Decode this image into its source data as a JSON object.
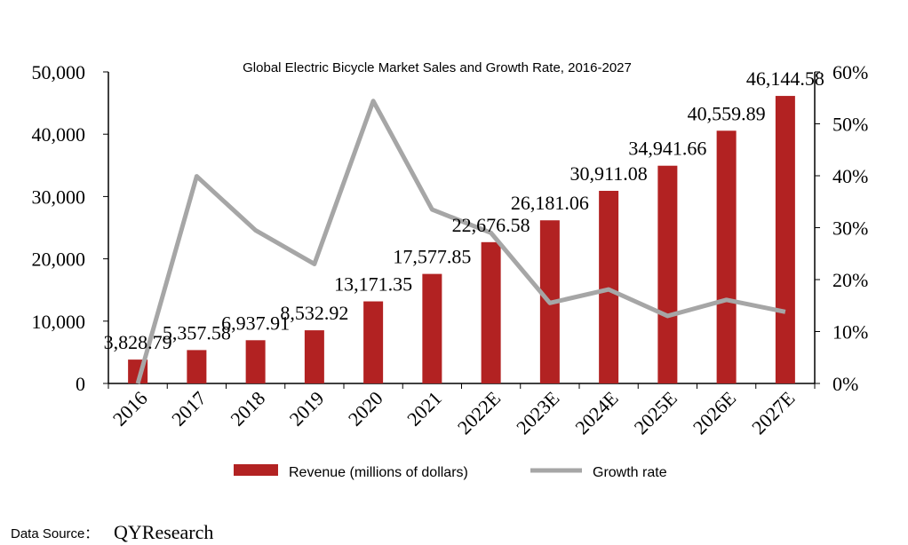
{
  "chart_data": {
    "type": "bar+line",
    "title": "Global Electric Bicycle Market Sales and Growth Rate, 2016-2027",
    "categories": [
      "2016",
      "2017",
      "2018",
      "2019",
      "2020",
      "2021",
      "2022E",
      "2023E",
      "2024E",
      "2025E",
      "2026E",
      "2027E"
    ],
    "series": [
      {
        "name": "Revenue (millions of dollars)",
        "type": "bar",
        "axis": "left",
        "color": "#b22222",
        "values": [
          3828.79,
          5357.58,
          6937.91,
          8532.92,
          13171.35,
          17577.85,
          22676.58,
          26181.06,
          30911.08,
          34941.66,
          40559.89,
          46144.58
        ],
        "labels": [
          "3,828.79",
          "5,357.58",
          "6,937.91",
          "8,532.92",
          "13,171.35",
          "17,577.85",
          "22,676.58",
          "26,181.06",
          "30,911.08",
          "34,941.66",
          "40,559.89",
          "46,144.58"
        ]
      },
      {
        "name": "Growth rate",
        "type": "line",
        "axis": "right",
        "color": "#a6a6a6",
        "values": [
          0,
          39.9,
          29.5,
          23.0,
          54.4,
          33.5,
          29.0,
          15.5,
          18.1,
          13.0,
          16.1,
          13.8
        ]
      }
    ],
    "left_axis": {
      "ylim": [
        0,
        50000
      ],
      "ticks": [
        "0",
        "10,000",
        "20,000",
        "30,000",
        "40,000",
        "50,000"
      ]
    },
    "right_axis": {
      "ylim": [
        0,
        60
      ],
      "ticks": [
        "0%",
        "10%",
        "20%",
        "30%",
        "40%",
        "50%",
        "60%"
      ]
    },
    "grid": false,
    "legend_position": "bottom"
  },
  "footer": {
    "source_label": "Data Source：",
    "source_name": "QYResearch"
  }
}
